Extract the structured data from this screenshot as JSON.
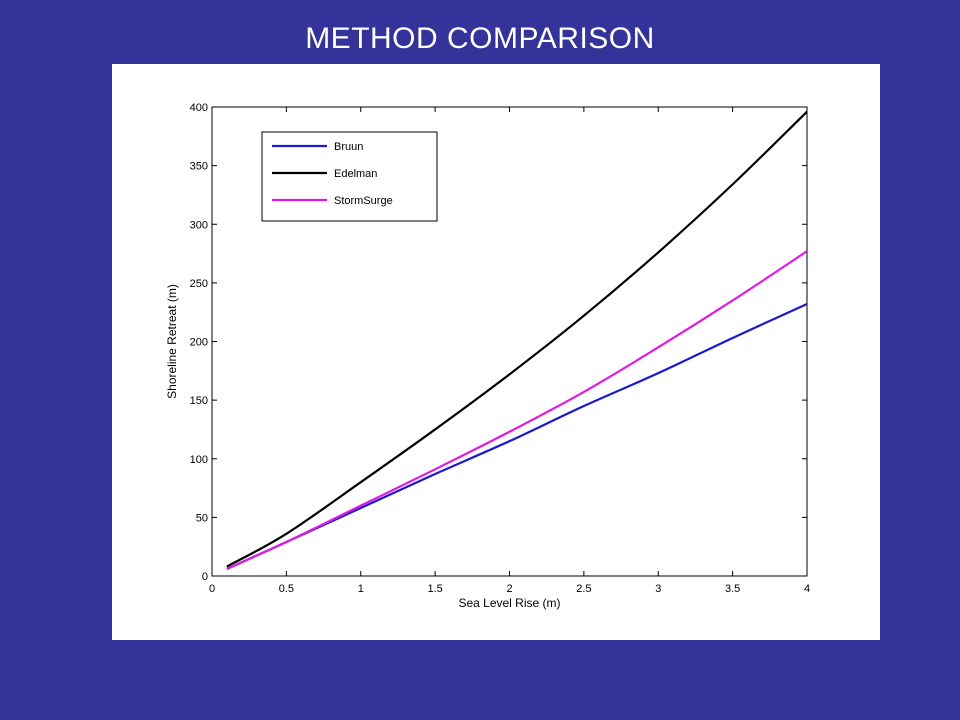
{
  "slide": {
    "title": "METHOD COMPARISON",
    "background_color": "#333399"
  },
  "chart_data": {
    "type": "line",
    "title": "",
    "xlabel": "Sea Level Rise (m)",
    "ylabel": "Shoreline Retreat (m)",
    "xlim": [
      0,
      4
    ],
    "ylim": [
      0,
      400
    ],
    "xticks": [
      "0",
      "0.5",
      "1",
      "1.5",
      "2",
      "2.5",
      "3",
      "3.5",
      "4"
    ],
    "yticks": [
      "0",
      "50",
      "100",
      "150",
      "200",
      "250",
      "300",
      "350",
      "400"
    ],
    "grid": false,
    "legend_position": "top-left",
    "series": [
      {
        "name": "Bruun",
        "color": "#1a1acc",
        "x": [
          0.1,
          0.5,
          1.0,
          1.5,
          2.0,
          2.5,
          3.0,
          3.5,
          4.0
        ],
        "y": [
          6,
          29,
          58,
          87,
          115,
          145,
          173,
          203,
          232
        ]
      },
      {
        "name": "Edelman",
        "color": "#000000",
        "x": [
          0.1,
          0.5,
          1.0,
          1.5,
          2.0,
          2.5,
          3.0,
          3.5,
          4.0
        ],
        "y": [
          8,
          36,
          80,
          125,
          172,
          222,
          276,
          334,
          396
        ]
      },
      {
        "name": "StormSurge",
        "color": "#e01be0",
        "x": [
          0.1,
          0.5,
          1.0,
          1.5,
          2.0,
          2.5,
          3.0,
          3.5,
          4.0
        ],
        "y": [
          6,
          29,
          60,
          91,
          123,
          157,
          195,
          235,
          277
        ]
      }
    ]
  }
}
